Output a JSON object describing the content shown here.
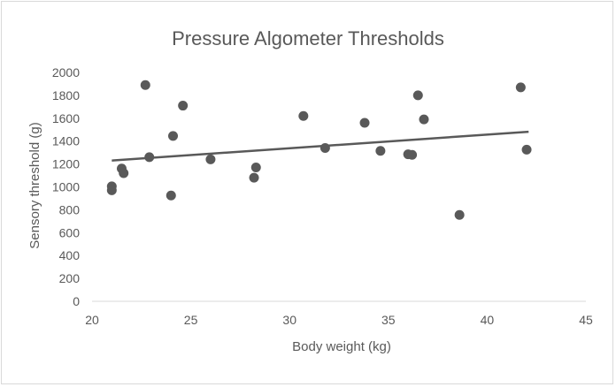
{
  "chart_data": {
    "type": "scatter",
    "title": "Pressure Algometer Thresholds",
    "xlabel": "Body weight (kg)",
    "ylabel": "Sensory threshold (g)",
    "xlim": [
      20,
      45
    ],
    "ylim": [
      0,
      2000
    ],
    "x_ticks": [
      20,
      25,
      30,
      35,
      40,
      45
    ],
    "y_ticks": [
      0,
      200,
      400,
      600,
      800,
      1000,
      1200,
      1400,
      1600,
      1800,
      2000
    ],
    "grid": false,
    "legend": false,
    "marker_color": "#595959",
    "series": [
      {
        "name": "Sensory threshold",
        "points": [
          {
            "x": 21.0,
            "y": 1005
          },
          {
            "x": 21.0,
            "y": 970
          },
          {
            "x": 21.5,
            "y": 1160
          },
          {
            "x": 21.6,
            "y": 1120
          },
          {
            "x": 22.7,
            "y": 1890
          },
          {
            "x": 22.9,
            "y": 1260
          },
          {
            "x": 24.0,
            "y": 925
          },
          {
            "x": 24.1,
            "y": 1445
          },
          {
            "x": 24.6,
            "y": 1710
          },
          {
            "x": 26.0,
            "y": 1240
          },
          {
            "x": 28.2,
            "y": 1080
          },
          {
            "x": 28.3,
            "y": 1170
          },
          {
            "x": 30.7,
            "y": 1620
          },
          {
            "x": 31.8,
            "y": 1340
          },
          {
            "x": 33.8,
            "y": 1560
          },
          {
            "x": 34.6,
            "y": 1315
          },
          {
            "x": 36.0,
            "y": 1285
          },
          {
            "x": 36.2,
            "y": 1280
          },
          {
            "x": 36.5,
            "y": 1800
          },
          {
            "x": 36.8,
            "y": 1590
          },
          {
            "x": 38.6,
            "y": 755
          },
          {
            "x": 41.7,
            "y": 1870
          },
          {
            "x": 42.0,
            "y": 1325
          }
        ]
      }
    ],
    "trendline": {
      "type": "linear",
      "color": "#595959",
      "start": {
        "x": 21.0,
        "y": 1230
      },
      "end": {
        "x": 42.1,
        "y": 1482
      }
    }
  }
}
